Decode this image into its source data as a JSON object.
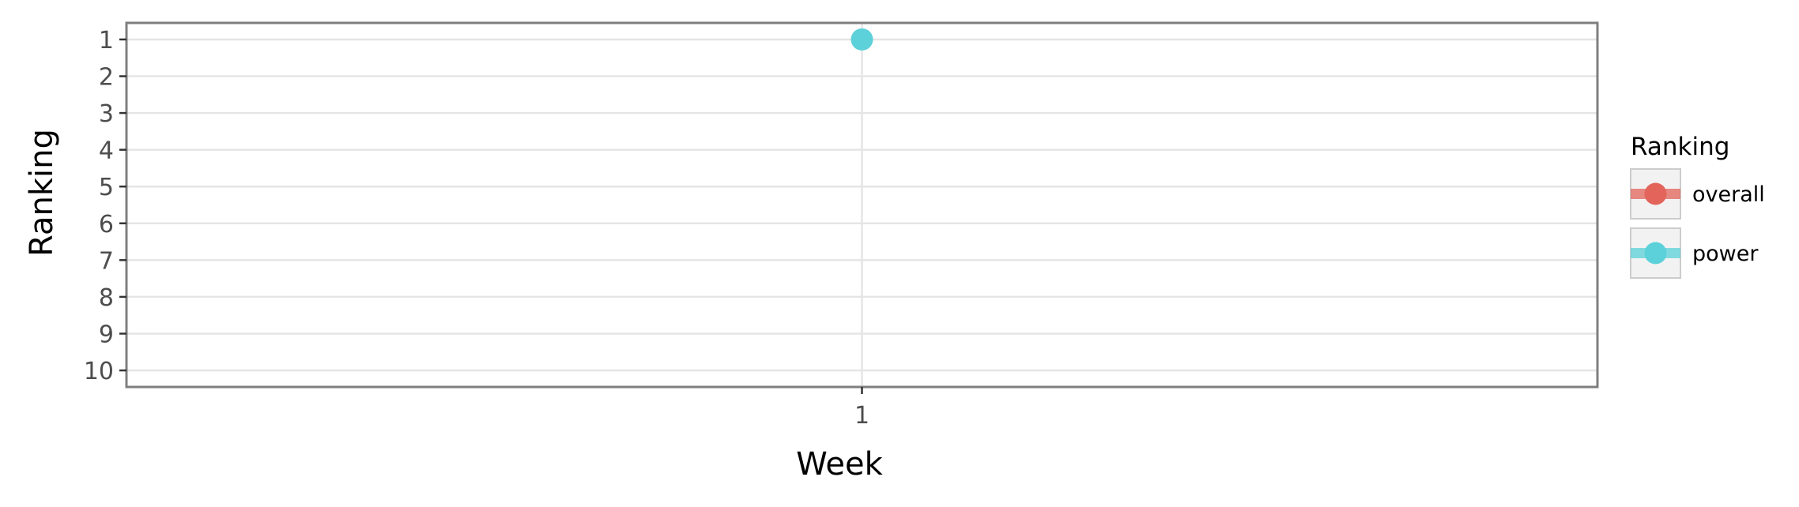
{
  "chart_data": {
    "type": "line",
    "xlabel": "Week",
    "ylabel": "Ranking",
    "x_ticks": [
      "1"
    ],
    "y_ticks": [
      "1",
      "2",
      "3",
      "4",
      "5",
      "6",
      "7",
      "8",
      "9",
      "10"
    ],
    "xlim": [
      0.5,
      1.5
    ],
    "ylim": [
      10.45,
      0.55
    ],
    "y_reversed": true,
    "grid": true,
    "legend": {
      "title": "Ranking",
      "placement": "right",
      "entries": [
        {
          "name": "overall",
          "color": "#E2645A"
        },
        {
          "name": "power",
          "color": "#5CD1DA"
        }
      ]
    },
    "series": [
      {
        "name": "overall",
        "color": "#E2645A",
        "points": []
      },
      {
        "name": "power",
        "color": "#5CD1DA",
        "points": [
          {
            "x": 1,
            "y": 1
          }
        ]
      }
    ]
  }
}
